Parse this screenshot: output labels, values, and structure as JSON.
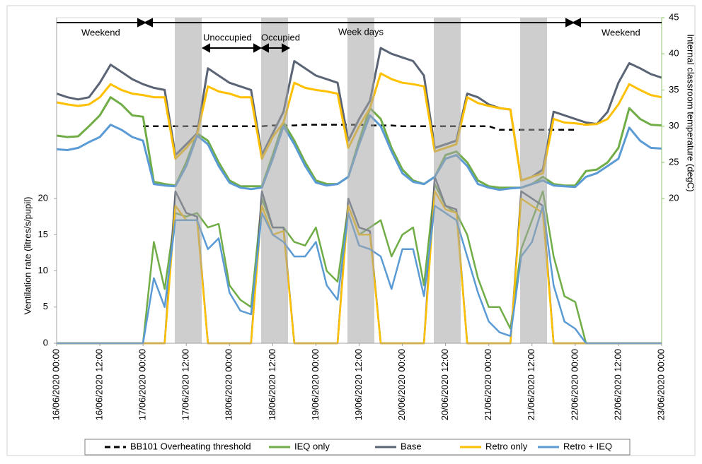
{
  "chart_data": {
    "type": "line",
    "y_label": "Ventilation rate (litres/s/pupil)",
    "y2_label": "Internal classroom temperature (degC)",
    "annotations": [
      "Weekend",
      "Week days",
      "Weekend",
      "Unoccupied",
      "Occupied"
    ],
    "x": [
      "16/06/2020 00:00",
      "16/06/2020 03:00",
      "16/06/2020 06:00",
      "16/06/2020 09:00",
      "16/06/2020 12:00",
      "16/06/2020 15:00",
      "16/06/2020 18:00",
      "16/06/2020 21:00",
      "17/06/2020 00:00",
      "17/06/2020 03:00",
      "17/06/2020 06:00",
      "17/06/2020 09:00",
      "17/06/2020 12:00",
      "17/06/2020 15:00",
      "17/06/2020 18:00",
      "17/06/2020 21:00",
      "18/06/2020 00:00",
      "18/06/2020 03:00",
      "18/06/2020 06:00",
      "18/06/2020 09:00",
      "18/06/2020 12:00",
      "18/06/2020 15:00",
      "18/06/2020 18:00",
      "18/06/2020 21:00",
      "19/06/2020 00:00",
      "19/06/2020 03:00",
      "19/06/2020 06:00",
      "19/06/2020 09:00",
      "19/06/2020 12:00",
      "19/06/2020 15:00",
      "19/06/2020 18:00",
      "19/06/2020 21:00",
      "20/06/2020 00:00",
      "20/06/2020 03:00",
      "20/06/2020 06:00",
      "20/06/2020 09:00",
      "20/06/2020 12:00",
      "20/06/2020 15:00",
      "20/06/2020 18:00",
      "20/06/2020 21:00",
      "21/06/2020 00:00",
      "21/06/2020 03:00",
      "21/06/2020 06:00",
      "21/06/2020 09:00",
      "21/06/2020 12:00",
      "21/06/2020 15:00",
      "21/06/2020 18:00",
      "21/06/2020 21:00",
      "22/06/2020 00:00",
      "22/06/2020 03:00",
      "22/06/2020 06:00",
      "22/06/2020 09:00",
      "22/06/2020 12:00",
      "22/06/2020 15:00",
      "22/06/2020 18:00",
      "22/06/2020 21:00",
      "23/06/2020 00:00"
    ],
    "xlim": [
      "16/06/2020 00:00",
      "23/06/2020 00:00"
    ],
    "xticks": [
      "16/06/2020 00:00",
      "16/06/2020 12:00",
      "17/06/2020 00:00",
      "17/06/2020 12:00",
      "18/06/2020 00:00",
      "18/06/2020 12:00",
      "19/06/2020 00:00",
      "19/06/2020 12:00",
      "20/06/2020 00:00",
      "20/06/2020 12:00",
      "21/06/2020 00:00",
      "21/06/2020 12:00",
      "22/06/2020 00:00",
      "22/06/2020 12:00",
      "23/06/2020 00:00"
    ],
    "ylim": [
      0,
      45
    ],
    "yticks": [
      0,
      5,
      10,
      15,
      20
    ],
    "y2lim": [
      0,
      45
    ],
    "y2ticks": [
      20,
      25,
      30,
      35,
      40,
      45
    ],
    "series": [
      {
        "name": "BB101 Overheating threshold",
        "color": "#000000",
        "dashed": true,
        "axis": "y2",
        "temperature": [
          null,
          null,
          null,
          null,
          null,
          null,
          null,
          null,
          30,
          30,
          30,
          30,
          30,
          30,
          30,
          30,
          30,
          30,
          30,
          30,
          30.1,
          30.1,
          30.1,
          30.2,
          30.2,
          30.2,
          30.2,
          30.2,
          30.2,
          30.1,
          30.1,
          30.1,
          30,
          30,
          30,
          30,
          30,
          30,
          30,
          30,
          30,
          29.5,
          29.5,
          29.5,
          29.5,
          29.5,
          29.5,
          29.5,
          29.5,
          null,
          null,
          null,
          null,
          null,
          null,
          null,
          null
        ]
      },
      {
        "name": "IEQ only",
        "color": "#70ad47",
        "axis": "y2",
        "temperature": [
          28.7,
          28.5,
          28.6,
          30,
          31.5,
          34,
          33,
          31.5,
          31.3,
          22.3,
          22,
          21.8,
          25,
          29,
          28,
          25,
          22.5,
          21.7,
          21.7,
          21.7,
          26,
          30.5,
          28,
          25,
          22.5,
          22,
          22,
          23,
          28,
          32.5,
          31,
          27,
          24,
          22.5,
          22,
          23,
          26,
          26.5,
          25,
          22.5,
          21.7,
          21.5,
          21.5,
          21.5,
          22,
          23,
          22,
          21.8,
          21.8,
          23.8,
          24,
          25,
          27,
          32.5,
          31,
          30.2,
          30.1
        ],
        "ventilation": [
          0,
          0,
          0,
          0,
          0,
          0,
          0,
          0,
          0,
          14,
          7.5,
          18,
          17.5,
          18,
          16,
          16.5,
          8,
          6,
          5,
          20,
          16,
          16,
          14,
          13.5,
          16,
          10,
          8.5,
          19,
          15,
          16,
          17,
          12,
          15,
          16,
          8,
          22,
          19,
          18,
          15,
          9,
          5,
          5,
          2,
          13,
          17,
          21,
          12,
          6.5,
          5.7,
          0,
          0,
          0,
          0,
          0,
          0,
          0,
          0
        ]
      },
      {
        "name": "Base",
        "color": "#5a6475",
        "axis": "y2",
        "temperature": [
          34.5,
          34,
          33.7,
          34,
          36,
          38.5,
          37.5,
          36.5,
          35.8,
          35.3,
          35,
          26,
          27.5,
          29,
          38,
          37,
          36,
          35.5,
          35,
          26,
          29,
          32,
          39,
          38,
          37,
          36.5,
          36,
          28,
          31,
          33.5,
          40.8,
          40,
          39.5,
          39,
          37,
          27,
          27.5,
          28,
          34.5,
          34,
          33,
          32.5,
          32.3,
          22.5,
          23,
          24,
          32,
          31.5,
          31,
          30.5,
          30.3,
          32,
          36,
          38.7,
          38,
          37.2,
          36.7
        ],
        "ventilation": [
          0,
          0,
          0,
          0,
          0,
          0,
          0,
          0,
          0,
          0,
          0,
          21,
          18,
          17.5,
          0,
          0,
          0,
          0,
          0,
          21,
          16,
          16,
          0,
          0,
          0,
          0,
          0,
          20,
          16,
          15.5,
          0,
          0,
          0,
          0,
          0,
          23,
          19,
          18.5,
          0,
          0,
          0,
          0,
          0,
          21,
          20,
          19,
          0,
          0,
          0,
          0,
          0,
          0,
          0,
          0,
          0,
          0,
          0
        ]
      },
      {
        "name": "Retro only",
        "color": "#ffc000",
        "axis": "y2",
        "temperature": [
          33.3,
          33,
          32.8,
          33,
          34,
          35.8,
          35,
          34.5,
          34.3,
          34,
          34,
          25.5,
          27,
          28.8,
          35.5,
          34.8,
          34.5,
          34,
          34,
          25.5,
          28.5,
          30.5,
          36,
          35.3,
          35,
          34.8,
          34.5,
          27,
          30,
          32.5,
          37.3,
          36.5,
          36,
          35.8,
          35.5,
          26.5,
          27,
          27.5,
          34,
          33.2,
          32.8,
          32.5,
          32.3,
          22.5,
          23,
          23.5,
          31,
          30.5,
          30.4,
          30.2,
          30.3,
          31,
          33,
          35.8,
          35,
          34.3,
          34
        ],
        "ventilation": [
          0,
          0,
          0,
          0,
          0,
          0,
          0,
          0,
          0,
          0,
          0,
          19,
          17,
          17,
          0,
          0,
          0,
          0,
          0,
          19,
          15,
          15.5,
          0,
          0,
          0,
          0,
          0,
          19,
          15,
          15,
          0,
          0,
          0,
          0,
          0,
          21,
          18.5,
          18,
          0,
          0,
          0,
          0,
          0,
          20,
          19,
          18,
          0,
          0,
          0,
          0,
          0,
          0,
          0,
          0,
          0,
          0,
          0
        ]
      },
      {
        "name": "Retro + IEQ",
        "color": "#5b9bd5",
        "axis": "y2",
        "temperature": [
          26.8,
          26.7,
          27,
          27.8,
          28.5,
          30.2,
          29.5,
          28.5,
          28,
          22,
          21.8,
          21.7,
          24.5,
          28.7,
          27.5,
          24.5,
          22.2,
          21.5,
          21.3,
          21.5,
          25.5,
          30,
          27.5,
          24.5,
          22.2,
          21.8,
          22,
          23,
          27.5,
          31.5,
          30,
          26.5,
          23.5,
          22.3,
          22,
          23,
          25.5,
          26,
          24.5,
          22,
          21.5,
          21.2,
          21.4,
          21.5,
          22,
          22.5,
          21.8,
          21.7,
          21.6,
          23,
          23.5,
          24.5,
          25.5,
          29.8,
          28,
          27,
          26.9
        ],
        "ventilation": [
          0,
          0,
          0,
          0,
          0,
          0,
          0,
          0,
          0,
          9,
          5,
          17,
          17,
          17,
          13,
          14.5,
          7,
          4.5,
          4,
          18,
          15,
          14,
          12,
          12,
          14,
          8,
          6,
          18,
          13.5,
          13,
          12,
          7.5,
          13,
          13,
          6.5,
          19,
          18,
          17,
          12,
          7,
          3,
          1.5,
          1,
          12,
          14,
          19,
          8,
          3,
          2,
          0,
          0,
          0,
          0,
          0,
          0,
          0,
          0
        ]
      }
    ]
  }
}
